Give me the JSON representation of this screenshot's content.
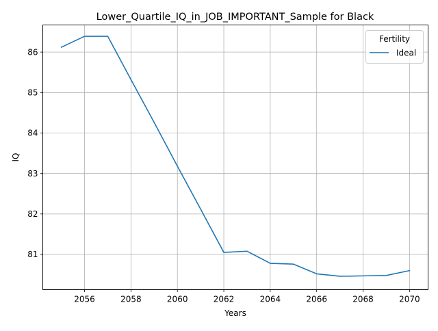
{
  "chart_data": {
    "type": "line",
    "title": "Lower_Quartile_IQ_in_JOB_IMPORTANT_Sample for Black",
    "xlabel": "Years",
    "ylabel": "IQ",
    "xlim": [
      2054.2,
      2070.8
    ],
    "ylim": [
      80.13,
      86.67
    ],
    "x_ticks": [
      2056,
      2058,
      2060,
      2062,
      2064,
      2066,
      2068,
      2070
    ],
    "x_tick_labels": [
      "2056",
      "2058",
      "2060",
      "2062",
      "2064",
      "2066",
      "2068",
      "2070"
    ],
    "y_ticks": [
      81,
      82,
      83,
      84,
      85,
      86
    ],
    "y_tick_labels": [
      "81",
      "82",
      "83",
      "84",
      "85",
      "86"
    ],
    "grid": true,
    "legend": {
      "title": "Fertility",
      "placement": "top-right"
    },
    "x": [
      2055,
      2056,
      2057,
      2058,
      2059,
      2060,
      2061,
      2062,
      2063,
      2064,
      2065,
      2066,
      2067,
      2068,
      2069,
      2070
    ],
    "series": [
      {
        "name": "Ideal",
        "color": "#1f77b4",
        "values": [
          86.12,
          86.39,
          86.39,
          85.32,
          84.26,
          83.18,
          82.12,
          81.05,
          81.08,
          80.78,
          80.76,
          80.52,
          80.46,
          80.47,
          80.48,
          80.6
        ]
      }
    ]
  }
}
